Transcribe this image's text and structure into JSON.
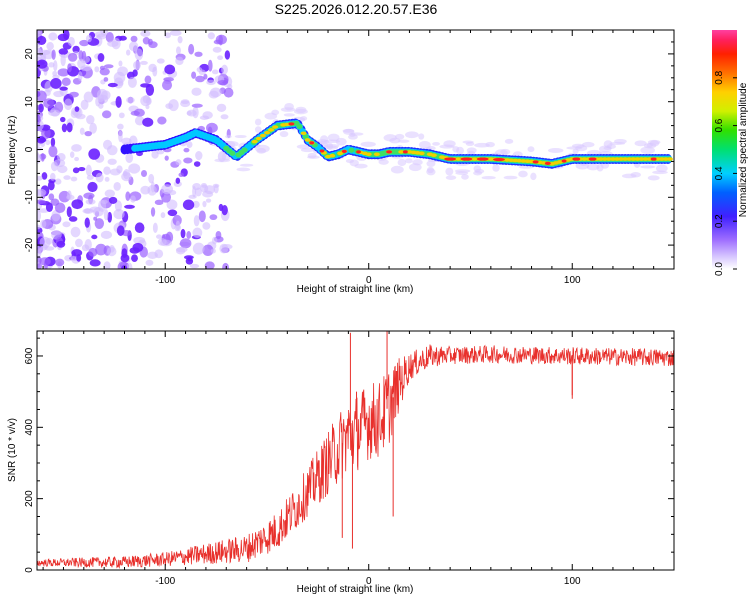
{
  "title": "S225.2026.012.20.57.E36",
  "colors": {
    "snr_line": "#e8302c",
    "spectral_low": "#b48cf0",
    "spectral_mid": "#00c8ff",
    "spectral_high": "#ff2020",
    "ridge_band": "#40d060"
  },
  "chart_data": [
    {
      "type": "heatmap",
      "name": "spectrogram",
      "title": "",
      "xlabel": "Height of straight line (km)",
      "ylabel": "Frequency (Hz)",
      "xlim": [
        -163,
        150
      ],
      "ylim": [
        -25,
        25
      ],
      "xticks": [
        -100,
        0,
        100
      ],
      "xtick_labels": [
        "-100",
        "0",
        "100"
      ],
      "yticks": [
        -20,
        -10,
        0,
        10,
        20
      ],
      "ytick_labels": [
        "-20",
        "-10",
        "0",
        "10",
        "20"
      ],
      "ridge_x": [
        -120,
        -110,
        -100,
        -90,
        -85,
        -75,
        -65,
        -55,
        -45,
        -35,
        -30,
        -25,
        -20,
        -15,
        -10,
        -5,
        0,
        5,
        10,
        20,
        30,
        40,
        60,
        80,
        90,
        100,
        110,
        120,
        130,
        140,
        148
      ],
      "ridge_y": [
        0,
        0.5,
        1,
        2.5,
        3.5,
        2,
        -1.5,
        2,
        5,
        5.5,
        2,
        0.5,
        -1.5,
        -1,
        0,
        -0.5,
        -1,
        -1,
        -0.5,
        -0.5,
        -1,
        -2,
        -2,
        -2.5,
        -3,
        -2,
        -2,
        -2,
        -2,
        -2,
        -2
      ],
      "colorbar": {
        "label": "Normalized spectral amplitude",
        "ticks": [
          0.0,
          0.2,
          0.4,
          0.6,
          0.8
        ],
        "tick_labels": [
          "0.0",
          "0.2",
          "0.4",
          "0.6",
          "0.8"
        ],
        "range": [
          0,
          1
        ]
      }
    },
    {
      "type": "line",
      "name": "snr",
      "title": "",
      "xlabel": "Height of straight line (km)",
      "ylabel": "SNR (10 * v/v)",
      "xlim": [
        -163,
        150
      ],
      "ylim": [
        0,
        670
      ],
      "xticks": [
        -100,
        0,
        100
      ],
      "xtick_labels": [
        "-100",
        "0",
        "100"
      ],
      "yticks": [
        0,
        200,
        400,
        600
      ],
      "ytick_labels": [
        "0",
        "200",
        "400",
        "600"
      ],
      "trend_x": [
        -163,
        -120,
        -100,
        -80,
        -60,
        -45,
        -35,
        -25,
        -15,
        -10,
        -5,
        0,
        5,
        10,
        15,
        20,
        30,
        60,
        100,
        150
      ],
      "trend_y": [
        20,
        22,
        30,
        45,
        60,
        110,
        180,
        260,
        340,
        380,
        390,
        420,
        420,
        460,
        520,
        570,
        600,
        605,
        600,
        595
      ],
      "noise_x": [
        -163,
        -100,
        -80,
        -60,
        -40,
        -30,
        -20,
        -10,
        0,
        10,
        20,
        40,
        150
      ],
      "noise_amp": [
        10,
        20,
        30,
        40,
        60,
        70,
        90,
        110,
        110,
        110,
        40,
        25,
        25
      ],
      "spikes": [
        {
          "x": -13,
          "y": 90
        },
        {
          "x": -9,
          "y": 665
        },
        {
          "x": -8,
          "y": 60
        },
        {
          "x": -6,
          "y": 500
        },
        {
          "x": 9,
          "y": 670
        },
        {
          "x": 12,
          "y": 150
        },
        {
          "x": 18,
          "y": 580
        },
        {
          "x": 100,
          "y": 490
        },
        {
          "x": 100,
          "y": 480
        }
      ]
    }
  ]
}
